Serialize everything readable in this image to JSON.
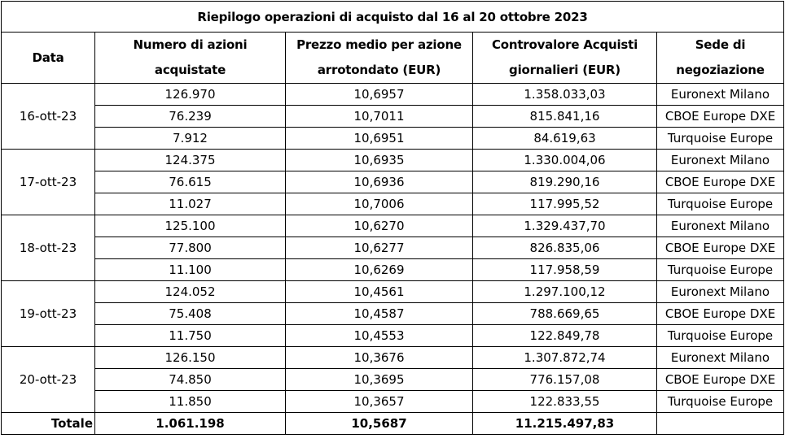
{
  "title": "Riepilogo operazioni di acquisto dal 16 al 20 ottobre 2023",
  "headers": {
    "date": "Data",
    "shares_line1": "Numero di azioni",
    "shares_line2": "acquistate",
    "price_line1": "Prezzo medio per azione",
    "price_line2": "arrotondato (EUR)",
    "value_line1": "Controvalore Acquisti",
    "value_line2": "giornalieri (EUR)",
    "venue_line1": "Sede di",
    "venue_line2": "negoziazione"
  },
  "days": [
    {
      "date": "16-ott-23",
      "rows": [
        {
          "shares": "126.970",
          "price": "10,6957",
          "value": "1.358.033,03",
          "venue": "Euronext Milano"
        },
        {
          "shares": "76.239",
          "price": "10,7011",
          "value": "815.841,16",
          "venue": "CBOE Europe DXE"
        },
        {
          "shares": "7.912",
          "price": "10,6951",
          "value": "84.619,63",
          "venue": "Turquoise Europe"
        }
      ]
    },
    {
      "date": "17-ott-23",
      "rows": [
        {
          "shares": "124.375",
          "price": "10,6935",
          "value": "1.330.004,06",
          "venue": "Euronext Milano"
        },
        {
          "shares": "76.615",
          "price": "10,6936",
          "value": "819.290,16",
          "venue": "CBOE Europe DXE"
        },
        {
          "shares": "11.027",
          "price": "10,7006",
          "value": "117.995,52",
          "venue": "Turquoise Europe"
        }
      ]
    },
    {
      "date": "18-ott-23",
      "rows": [
        {
          "shares": "125.100",
          "price": "10,6270",
          "value": "1.329.437,70",
          "venue": "Euronext Milano"
        },
        {
          "shares": "77.800",
          "price": "10,6277",
          "value": "826.835,06",
          "venue": "CBOE Europe DXE"
        },
        {
          "shares": "11.100",
          "price": "10,6269",
          "value": "117.958,59",
          "venue": "Turquoise Europe"
        }
      ]
    },
    {
      "date": "19-ott-23",
      "rows": [
        {
          "shares": "124.052",
          "price": "10,4561",
          "value": "1.297.100,12",
          "venue": "Euronext Milano"
        },
        {
          "shares": "75.408",
          "price": "10,4587",
          "value": "788.669,65",
          "venue": "CBOE Europe DXE"
        },
        {
          "shares": "11.750",
          "price": "10,4553",
          "value": "122.849,78",
          "venue": "Turquoise Europe"
        }
      ]
    },
    {
      "date": "20-ott-23",
      "rows": [
        {
          "shares": "126.150",
          "price": "10,3676",
          "value": "1.307.872,74",
          "venue": "Euronext Milano"
        },
        {
          "shares": "74.850",
          "price": "10,3695",
          "value": "776.157,08",
          "venue": "CBOE Europe DXE"
        },
        {
          "shares": "11.850",
          "price": "10,3657",
          "value": "122.833,55",
          "venue": "Turquoise Europe"
        }
      ]
    }
  ],
  "total": {
    "label": "Totale",
    "shares": "1.061.198",
    "price": "10,5687",
    "value": "11.215.497,83",
    "venue": ""
  }
}
